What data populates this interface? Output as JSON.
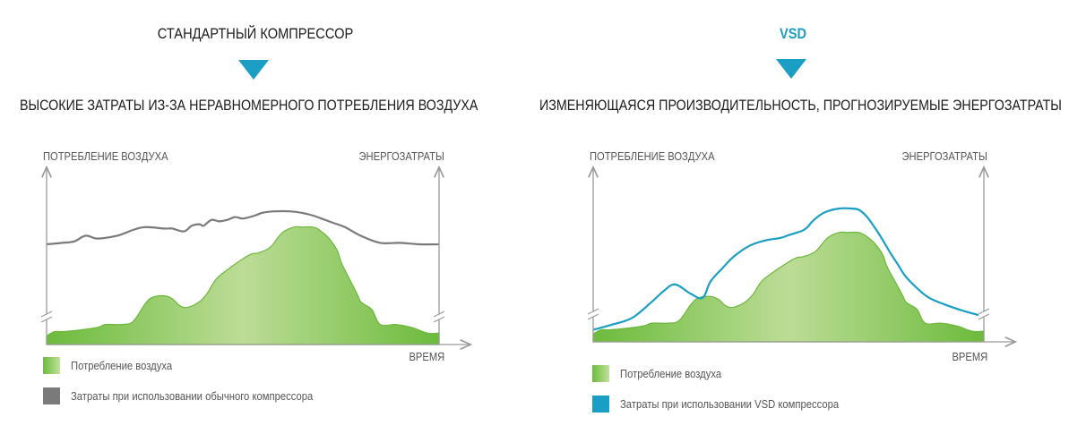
{
  "colors": {
    "green_light": "#bcdc96",
    "green_dark": "#6cbb3c",
    "green_line": "#6cb83a",
    "gray": "#7a7a7a",
    "blue": "#1a9ec4",
    "axis": "#9a9a9a",
    "triangle": "#1a9ec4"
  },
  "chart_data": [
    {
      "type": "area",
      "title": "СТАНДАРТНЫЙ КОМПРЕССОР",
      "subtitle": "ВЫСОКИЕ ЗАТРАТЫ ИЗ-ЗА НЕРАВНОМЕРНОГО ПОТРЕБЛЕНИЯ ВОЗДУХА",
      "ylabel": "ПОТРЕБЛЕНИЕ ВОЗДУХА",
      "y2label": "ЭНЕРГОЗАТРАТЫ",
      "xlabel": "ВРЕМЯ",
      "xlim": [
        0,
        100
      ],
      "ylim": [
        0,
        100
      ],
      "series": [
        {
          "name": "Потребление воздуха",
          "kind": "area",
          "x": [
            0,
            2,
            4,
            8,
            13,
            15,
            19,
            22,
            25,
            27,
            30,
            32,
            34,
            36,
            39,
            41,
            43,
            45,
            49,
            52,
            54,
            57,
            60,
            63,
            65,
            68,
            70,
            72,
            74,
            75,
            76,
            79,
            80,
            81,
            83,
            85,
            89,
            93,
            97,
            100
          ],
          "y": [
            6,
            9,
            9,
            10,
            12,
            14,
            14,
            16,
            28,
            33,
            34,
            32,
            27,
            26,
            30,
            36,
            45,
            50,
            58,
            63,
            64,
            68,
            78,
            82,
            82,
            82,
            79,
            74,
            66,
            58,
            52,
            36,
            30,
            28,
            24,
            14,
            14,
            12,
            8,
            8
          ]
        },
        {
          "name": "Затраты при использовании обычного компрессора",
          "kind": "line",
          "x": [
            0,
            4,
            7,
            10,
            13,
            18,
            22,
            25,
            30,
            32,
            35,
            37,
            39,
            40,
            42,
            44,
            46,
            48,
            50,
            53,
            55,
            58,
            62,
            65,
            68,
            70,
            73,
            76,
            80,
            85,
            90,
            95,
            100
          ],
          "y": [
            70,
            71,
            72,
            76,
            74,
            76,
            80,
            82,
            81,
            81,
            79,
            83,
            84,
            83,
            87,
            86,
            87,
            89,
            88,
            90,
            92,
            93,
            93,
            92,
            90,
            88,
            85,
            82,
            76,
            71,
            71,
            70,
            70
          ]
        }
      ],
      "legend": [
        {
          "label": "Потребление воздуха",
          "swatch": "green"
        },
        {
          "label": "Затраты при использовании обычного компрессора",
          "swatch": "gray"
        }
      ]
    },
    {
      "type": "area",
      "title": "VSD",
      "subtitle": "ИЗМЕНЯЮЩАЯСЯ ПРОИЗВОДИТЕЛЬНОСТЬ, ПРОГНОЗИРУЕМЫЕ ЭНЕРГОЗАТРАТЫ",
      "ylabel": "ПОТРЕБЛЕНИЕ ВОЗДУХА",
      "y2label": "ЭНЕРГОЗАТРАТЫ",
      "xlabel": "ВРЕМЯ",
      "xlim": [
        0,
        100
      ],
      "ylim": [
        0,
        100
      ],
      "series": [
        {
          "name": "Потребление воздуха",
          "kind": "area",
          "x": [
            0,
            2,
            4,
            8,
            13,
            15,
            19,
            22,
            25,
            27,
            30,
            32,
            34,
            36,
            39,
            41,
            43,
            45,
            49,
            52,
            54,
            57,
            60,
            63,
            65,
            68,
            70,
            72,
            74,
            75,
            76,
            79,
            80,
            81,
            83,
            85,
            89,
            93,
            97,
            100
          ],
          "y": [
            6,
            9,
            9,
            10,
            12,
            14,
            14,
            16,
            28,
            33,
            34,
            32,
            27,
            26,
            30,
            36,
            45,
            50,
            58,
            63,
            64,
            68,
            78,
            82,
            82,
            82,
            79,
            74,
            66,
            58,
            52,
            36,
            30,
            28,
            24,
            14,
            14,
            12,
            8,
            8
          ]
        },
        {
          "name": "Затраты при использовании VSD компрессора",
          "kind": "line",
          "x": [
            0,
            5,
            10,
            15,
            18,
            21,
            25,
            28,
            30,
            33,
            36,
            40,
            44,
            48,
            50,
            54,
            56,
            58,
            60,
            63,
            66,
            68,
            70,
            72,
            74,
            76,
            78,
            80,
            83,
            86,
            90,
            95,
            100
          ],
          "y": [
            9,
            13,
            18,
            30,
            38,
            43,
            36,
            33,
            45,
            55,
            64,
            72,
            76,
            78,
            80,
            84,
            90,
            95,
            98,
            100,
            100,
            99,
            94,
            86,
            77,
            67,
            58,
            49,
            40,
            33,
            28,
            23,
            19
          ]
        }
      ],
      "legend": [
        {
          "label": "Потребление воздуха",
          "swatch": "green"
        },
        {
          "label": "Затраты при использовании VSD компрессора",
          "swatch": "blue"
        }
      ]
    }
  ]
}
